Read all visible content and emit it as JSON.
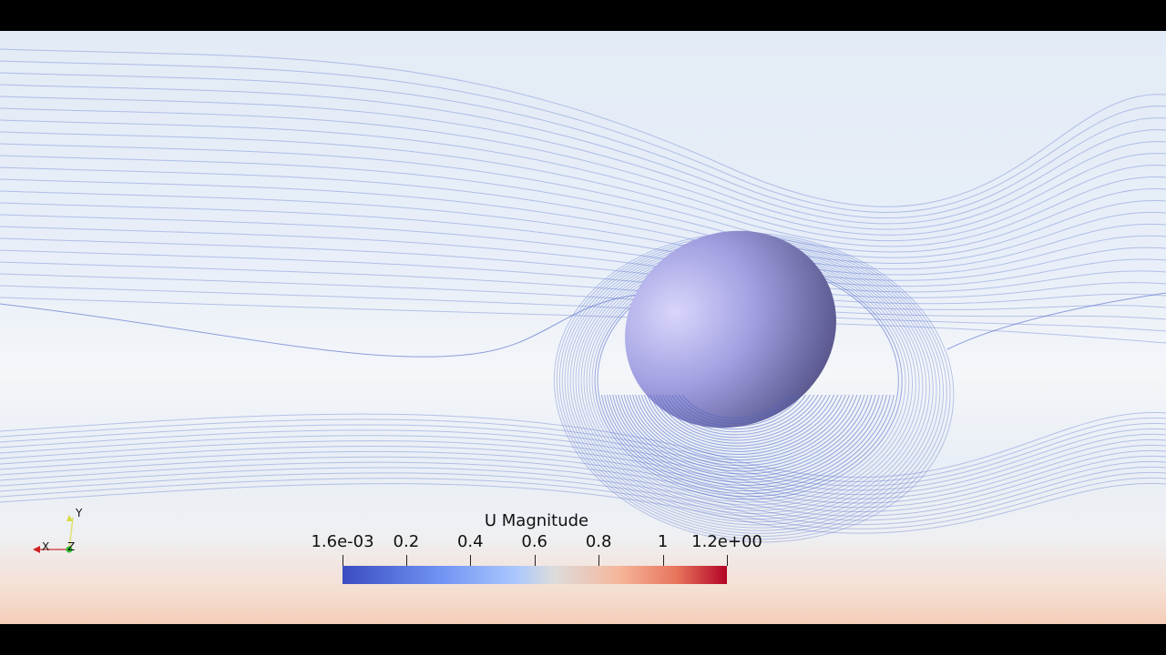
{
  "colorbar": {
    "title": "U Magnitude",
    "colormap": "Cool to Warm",
    "range": [
      0.0016,
      1.2
    ],
    "tick_labels": [
      "1.6e-03",
      "0.2",
      "0.4",
      "0.6",
      "0.8",
      "1",
      "1.2e+00"
    ],
    "tick_values": [
      0.0016,
      0.2,
      0.4,
      0.6,
      0.8,
      1.0,
      1.2
    ],
    "colors": [
      "#3b4cc0",
      "#dddcdc",
      "#b40426"
    ]
  },
  "orientation_axes": {
    "x": "X",
    "y": "Y",
    "z": "Z",
    "x_color": "#d02020",
    "y_color": "#d8d840",
    "z_color": "#30c030"
  },
  "scene": {
    "object": "sphere",
    "streamline_color": "#4a64c8"
  }
}
